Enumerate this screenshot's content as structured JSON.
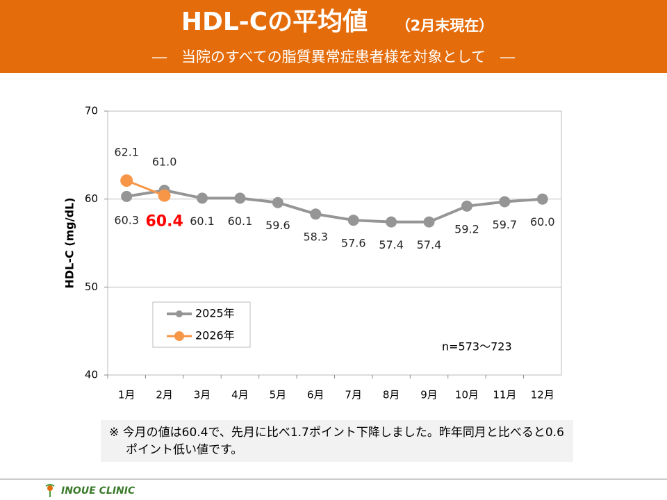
{
  "header": {
    "title": "HDL-Cの平均値",
    "subtitle": "（2月末現在）",
    "tagline": "―　当院のすべての脂質異常症患者様を対象として　―"
  },
  "chart_data": {
    "type": "line",
    "y_label": "HDL-C (mg/dL)",
    "categories": [
      "1月",
      "2月",
      "3月",
      "4月",
      "5月",
      "6月",
      "7月",
      "8月",
      "9月",
      "10月",
      "11月",
      "12月"
    ],
    "series": [
      {
        "name": "2025年",
        "color": "#959595",
        "values": [
          60.3,
          61.0,
          60.1,
          60.1,
          59.6,
          58.3,
          57.6,
          57.4,
          57.4,
          59.2,
          59.7,
          60.0
        ],
        "value_labels": [
          "60.3",
          "61.0",
          "60.1",
          "60.1",
          "59.6",
          "58.3",
          "57.6",
          "57.4",
          "57.4",
          "59.2",
          "59.7",
          "60.0"
        ]
      },
      {
        "name": "2026年",
        "color": "#f79646",
        "values": [
          62.1,
          60.4,
          null,
          null,
          null,
          null,
          null,
          null,
          null,
          null,
          null,
          null
        ],
        "value_labels": [
          "62.1",
          "60.4",
          null,
          null,
          null,
          null,
          null,
          null,
          null,
          null,
          null,
          null
        ]
      }
    ],
    "ylim": [
      40,
      70
    ],
    "yticks": [
      40,
      50,
      60,
      70
    ],
    "grid": true,
    "legend": "lower left",
    "annotation": "n=573～723"
  },
  "note": "※ 今月の値は60.4で、先月に比べ1.7ポイント下降しました。昨年同月と比べると0.6ポイント低い値です。",
  "footer": {
    "clinic": "INOUE CLINIC"
  }
}
